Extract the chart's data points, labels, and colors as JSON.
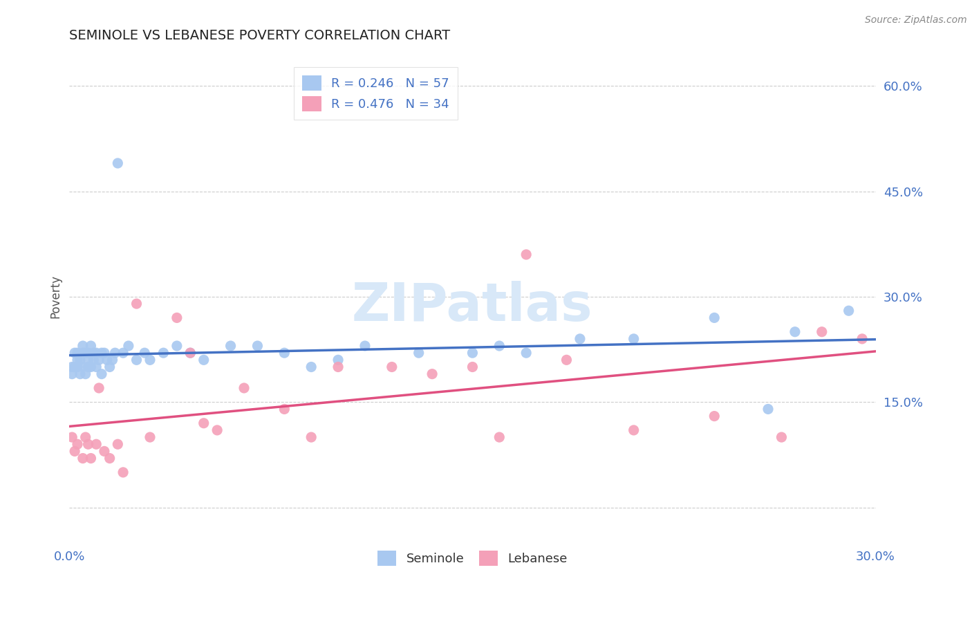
{
  "title": "SEMINOLE VS LEBANESE POVERTY CORRELATION CHART",
  "source": "Source: ZipAtlas.com",
  "ylabel_label": "Poverty",
  "xlim": [
    0.0,
    0.3
  ],
  "ylim": [
    -0.05,
    0.65
  ],
  "xticks": [
    0.0,
    0.05,
    0.1,
    0.15,
    0.2,
    0.25,
    0.3
  ],
  "ytick_vals": [
    0.0,
    0.15,
    0.3,
    0.45,
    0.6
  ],
  "ytick_labels": [
    "",
    "15.0%",
    "30.0%",
    "45.0%",
    "60.0%"
  ],
  "seminole_R": 0.246,
  "seminole_N": 57,
  "lebanese_R": 0.476,
  "lebanese_N": 34,
  "seminole_color": "#A8C8F0",
  "lebanese_color": "#F4A0B8",
  "seminole_line_color": "#4472C4",
  "lebanese_line_color": "#E05080",
  "background_color": "#FFFFFF",
  "grid_color": "#CCCCCC",
  "title_color": "#222222",
  "axis_label_color": "#4472C4",
  "watermark_color": "#D8E8F8",
  "seminole_x": [
    0.001,
    0.001,
    0.002,
    0.002,
    0.003,
    0.003,
    0.003,
    0.004,
    0.004,
    0.005,
    0.005,
    0.005,
    0.006,
    0.006,
    0.007,
    0.007,
    0.007,
    0.008,
    0.008,
    0.009,
    0.009,
    0.01,
    0.01,
    0.011,
    0.012,
    0.012,
    0.013,
    0.014,
    0.015,
    0.016,
    0.017,
    0.018,
    0.02,
    0.022,
    0.025,
    0.028,
    0.03,
    0.035,
    0.04,
    0.045,
    0.05,
    0.06,
    0.07,
    0.08,
    0.09,
    0.1,
    0.11,
    0.13,
    0.15,
    0.16,
    0.17,
    0.19,
    0.21,
    0.24,
    0.26,
    0.27,
    0.29
  ],
  "seminole_y": [
    0.2,
    0.19,
    0.22,
    0.2,
    0.22,
    0.2,
    0.21,
    0.21,
    0.19,
    0.22,
    0.2,
    0.23,
    0.19,
    0.22,
    0.21,
    0.2,
    0.22,
    0.2,
    0.23,
    0.21,
    0.22,
    0.2,
    0.22,
    0.21,
    0.19,
    0.22,
    0.22,
    0.21,
    0.2,
    0.21,
    0.22,
    0.49,
    0.22,
    0.23,
    0.21,
    0.22,
    0.21,
    0.22,
    0.23,
    0.22,
    0.21,
    0.23,
    0.23,
    0.22,
    0.2,
    0.21,
    0.23,
    0.22,
    0.22,
    0.23,
    0.22,
    0.24,
    0.24,
    0.27,
    0.14,
    0.25,
    0.28
  ],
  "lebanese_x": [
    0.001,
    0.002,
    0.003,
    0.005,
    0.006,
    0.007,
    0.008,
    0.01,
    0.011,
    0.013,
    0.015,
    0.018,
    0.02,
    0.025,
    0.03,
    0.04,
    0.045,
    0.05,
    0.055,
    0.065,
    0.08,
    0.09,
    0.1,
    0.12,
    0.135,
    0.15,
    0.16,
    0.17,
    0.185,
    0.21,
    0.24,
    0.265,
    0.28,
    0.295
  ],
  "lebanese_y": [
    0.1,
    0.08,
    0.09,
    0.07,
    0.1,
    0.09,
    0.07,
    0.09,
    0.17,
    0.08,
    0.07,
    0.09,
    0.05,
    0.29,
    0.1,
    0.27,
    0.22,
    0.12,
    0.11,
    0.17,
    0.14,
    0.1,
    0.2,
    0.2,
    0.19,
    0.2,
    0.1,
    0.36,
    0.21,
    0.11,
    0.13,
    0.1,
    0.25,
    0.24
  ]
}
